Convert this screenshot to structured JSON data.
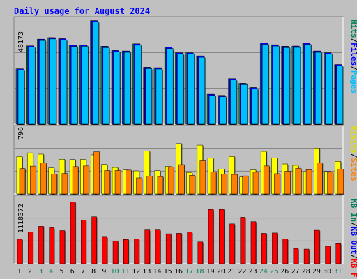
{
  "chart_data": [
    {
      "type": "bar",
      "title": "Daily usage for August 2024",
      "panel": "top",
      "categories": [
        "1",
        "2",
        "3",
        "4",
        "5",
        "6",
        "7",
        "8",
        "9",
        "10",
        "11",
        "12",
        "13",
        "14",
        "15",
        "16",
        "17",
        "18",
        "19",
        "20",
        "21",
        "22",
        "23",
        "24",
        "25",
        "26",
        "27",
        "28",
        "29",
        "30",
        "31"
      ],
      "weekend_days": [
        "3",
        "4",
        "10",
        "11",
        "17",
        "18",
        "24",
        "25",
        "31"
      ],
      "ymax_label": "48173",
      "ylim": [
        0,
        48173
      ],
      "right_labels": [
        "Hits",
        "Files",
        "Pages"
      ],
      "series": [
        {
          "name": "Hits",
          "color": "#00805c",
          "values": [
            24800,
            35100,
            38100,
            38800,
            38300,
            35400,
            35500,
            46400,
            34900,
            33000,
            32800,
            36000,
            25500,
            25300,
            34500,
            32000,
            32000,
            30600,
            13400,
            12900,
            20400,
            18300,
            16400,
            36400,
            35600,
            34900,
            35000,
            36300,
            32800,
            32000,
            26700
          ]
        },
        {
          "name": "Files",
          "color": "#0000ff",
          "values": [
            24800,
            35100,
            38100,
            38800,
            38300,
            35400,
            35500,
            46400,
            34900,
            33000,
            32800,
            36000,
            25500,
            25300,
            34500,
            32000,
            32000,
            30600,
            13400,
            12900,
            20400,
            18300,
            16400,
            36400,
            35600,
            34900,
            35000,
            36300,
            32800,
            32000,
            26700
          ]
        },
        {
          "name": "Pages",
          "color": "#00bfff",
          "values": [
            24200,
            34500,
            37500,
            38200,
            37700,
            34800,
            34900,
            45800,
            34300,
            32400,
            32200,
            35400,
            24900,
            24700,
            33900,
            31400,
            31400,
            30000,
            12800,
            12300,
            19800,
            17700,
            15800,
            35800,
            35000,
            34300,
            34400,
            35700,
            32200,
            31400,
            26100
          ]
        }
      ]
    },
    {
      "type": "bar",
      "panel": "middle",
      "categories": [
        "1",
        "2",
        "3",
        "4",
        "5",
        "6",
        "7",
        "8",
        "9",
        "10",
        "11",
        "12",
        "13",
        "14",
        "15",
        "16",
        "17",
        "18",
        "19",
        "20",
        "21",
        "22",
        "23",
        "24",
        "25",
        "26",
        "27",
        "28",
        "29",
        "30",
        "31"
      ],
      "ymax_label": "796",
      "ylim": [
        0,
        796
      ],
      "right_labels": [
        "Visits",
        "Sites"
      ],
      "series": [
        {
          "name": "Visits",
          "color": "#ffff00",
          "values": [
            436,
            478,
            463,
            304,
            404,
            400,
            402,
            455,
            345,
            308,
            279,
            268,
            499,
            270,
            321,
            586,
            250,
            568,
            416,
            288,
            436,
            197,
            280,
            495,
            418,
            349,
            333,
            259,
            534,
            262,
            379
          ]
        },
        {
          "name": "Sites",
          "color": "#ff8000",
          "values": [
            295,
            324,
            360,
            232,
            238,
            318,
            326,
            490,
            272,
            272,
            277,
            187,
            207,
            202,
            315,
            341,
            217,
            386,
            256,
            232,
            227,
            210,
            253,
            326,
            236,
            265,
            299,
            282,
            361,
            253,
            287
          ]
        }
      ]
    },
    {
      "type": "bar",
      "panel": "bottom",
      "categories": [
        "1",
        "2",
        "3",
        "4",
        "5",
        "6",
        "7",
        "8",
        "9",
        "10",
        "11",
        "12",
        "13",
        "14",
        "15",
        "16",
        "17",
        "18",
        "19",
        "20",
        "21",
        "22",
        "23",
        "24",
        "25",
        "26",
        "27",
        "28",
        "29",
        "30",
        "31"
      ],
      "ymax_label": "1118372",
      "ylim": [
        0,
        1118372
      ],
      "right_labels": [
        "KB In",
        "KB Out",
        "KB F"
      ],
      "series": [
        {
          "name": "KB F",
          "color": "#ff0000",
          "values": [
            400000,
            520000,
            612000,
            589000,
            542000,
            1007000,
            711000,
            767000,
            435000,
            371000,
            397000,
            402000,
            552000,
            552000,
            490000,
            498000,
            516000,
            356000,
            888000,
            888000,
            652000,
            760000,
            688000,
            497000,
            503000,
            402000,
            249000,
            239000,
            547000,
            286000,
            328000
          ]
        }
      ]
    }
  ],
  "colors": {
    "background": "#c0c0c0",
    "title": "#0000ff",
    "weekday_label": "#000000",
    "weekend_label": "#00805c",
    "gridline": "#808080"
  }
}
